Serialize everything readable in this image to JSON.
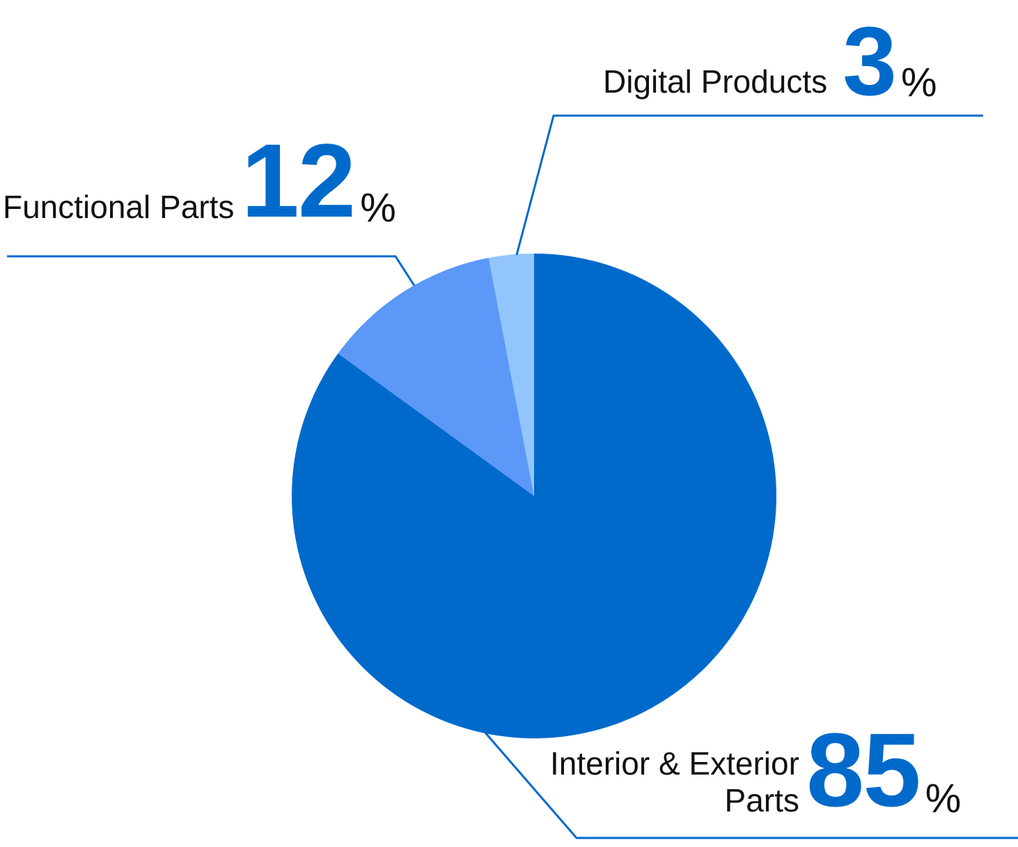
{
  "chart_data": {
    "type": "pie",
    "slices": [
      {
        "label": "Interior & Exterior Parts",
        "label_lines": [
          "Interior & Exterior",
          "Parts"
        ],
        "value": 85,
        "display": "85",
        "unit": "%",
        "color": "#006acb"
      },
      {
        "label": "Functional Parts",
        "label_lines": [
          "Functional Parts"
        ],
        "value": 12,
        "display": "12",
        "unit": "%",
        "color": "#5b98f8"
      },
      {
        "label": "Digital Products",
        "label_lines": [
          "Digital Products"
        ],
        "value": 3,
        "display": "3",
        "unit": "%",
        "color": "#93c5fd"
      }
    ],
    "start_angle": "12 o'clock",
    "direction": "clockwise",
    "leader_line_color": "#006acb",
    "legend": "none"
  }
}
